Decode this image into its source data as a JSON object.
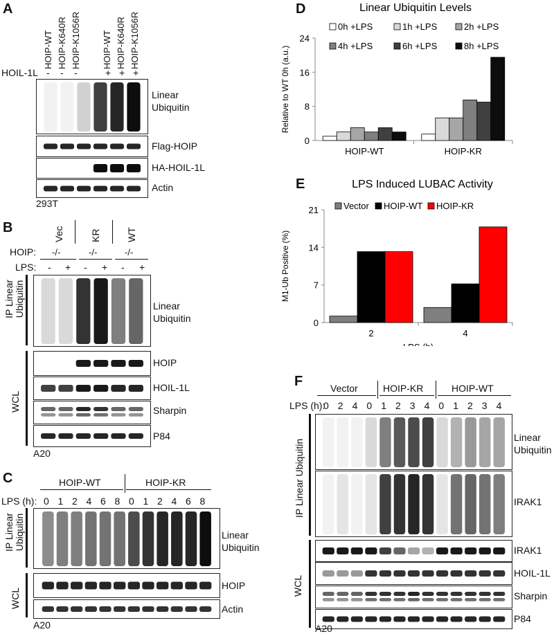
{
  "panelA": {
    "label": "A",
    "lanes": [
      "HOIP-WT",
      "HOIP-K640R",
      "HOIP-K1056R",
      "HOIP-WT",
      "HOIP-K640R",
      "HOIP-K1056R"
    ],
    "hoil_label": "HOIL-1L",
    "hoil_signs": [
      "-",
      "-",
      "-",
      "+",
      "+",
      "+"
    ],
    "blots": [
      "Linear Ubiquitin",
      "Flag-HOIP",
      "HA-HOIL-1L",
      "Actin"
    ],
    "cell_line": "293T"
  },
  "panelB": {
    "label": "B",
    "groups": [
      "Vec",
      "KR",
      "WT"
    ],
    "hoip_label": "HOIP:",
    "hoip_values": [
      "-/-",
      "-/-",
      "-/-"
    ],
    "lps_label": "LPS:",
    "lps_signs": [
      "-",
      "+",
      "-",
      "+",
      "-",
      "+"
    ],
    "ip_label": "IP Linear Ubiquitin",
    "wcl_label": "WCL",
    "blots": [
      "Linear Ubiquitin",
      "HOIP",
      "HOIL-1L",
      "Sharpin",
      "P84"
    ],
    "cell_line": "A20"
  },
  "panelC": {
    "label": "C",
    "groups": [
      "HOIP-WT",
      "HOIP-KR"
    ],
    "lps_label": "LPS (h):",
    "times": [
      "0",
      "1",
      "2",
      "4",
      "6",
      "8",
      "0",
      "1",
      "2",
      "4",
      "6",
      "8"
    ],
    "ip_label": "IP Linear Ubiquitin",
    "wcl_label": "WCL",
    "blots": [
      "Linear Ubiquitin",
      "HOIP",
      "Actin"
    ],
    "cell_line": "A20"
  },
  "panelF": {
    "label": "F",
    "groups": [
      "Vector",
      "HOIP-KR",
      "HOIP-WT"
    ],
    "lps_label": "LPS (h):",
    "times": [
      "0",
      "2",
      "4",
      "0",
      "1",
      "2",
      "3",
      "4",
      "0",
      "1",
      "2",
      "3",
      "4"
    ],
    "ip_label": "IP Linear Ubiquitin",
    "wcl_label": "WCL",
    "blots": [
      "Linear Ubiquitin",
      "IRAK1",
      "IRAK1",
      "HOIL-1L",
      "Sharpin",
      "P84"
    ],
    "cell_line": "A20"
  },
  "chart_data": [
    {
      "panel": "D",
      "type": "bar",
      "title": "Linear Ubiquitin Levels",
      "xlabel": "",
      "ylabel": "Relative to WT 0h (a.u.)",
      "categories": [
        "HOIP-WT",
        "HOIP-KR"
      ],
      "ylim": [
        0,
        24
      ],
      "yticks": [
        "0",
        "8",
        "16",
        "24"
      ],
      "legend_position": "top",
      "series": [
        {
          "name": "0h  +LPS",
          "color": "#ffffff",
          "values": [
            1.0,
            1.5
          ]
        },
        {
          "name": "1h +LPS",
          "color": "#d9d9d9",
          "values": [
            2.0,
            5.3
          ]
        },
        {
          "name": "2h +LPS",
          "color": "#a6a6a6",
          "values": [
            3.0,
            5.3
          ]
        },
        {
          "name": "4h +LPS",
          "color": "#7f7f7f",
          "values": [
            2.0,
            9.5
          ]
        },
        {
          "name": "6h +LPS",
          "color": "#404040",
          "values": [
            3.0,
            9.0
          ]
        },
        {
          "name": "8h +LPS",
          "color": "#0d0d0d",
          "values": [
            2.0,
            19.5
          ]
        }
      ]
    },
    {
      "panel": "E",
      "type": "bar",
      "title": "LPS Induced LUBAC Activity",
      "xlabel": "LPS (h)",
      "ylabel": "M1-Ub Positive (%)",
      "categories": [
        "2",
        "4"
      ],
      "ylim": [
        0,
        21
      ],
      "yticks": [
        "0",
        "7",
        "14",
        "21"
      ],
      "legend_position": "top",
      "series": [
        {
          "name": "Vector",
          "color": "#7f7f7f",
          "values": [
            1.2,
            2.8
          ]
        },
        {
          "name": "HOIP-WT",
          "color": "#000000",
          "values": [
            13.2,
            7.2
          ]
        },
        {
          "name": "HOIP-KR",
          "color": "#ff0000",
          "values": [
            13.2,
            17.8
          ]
        }
      ]
    }
  ],
  "panel_labels": {
    "D": "D",
    "E": "E"
  }
}
